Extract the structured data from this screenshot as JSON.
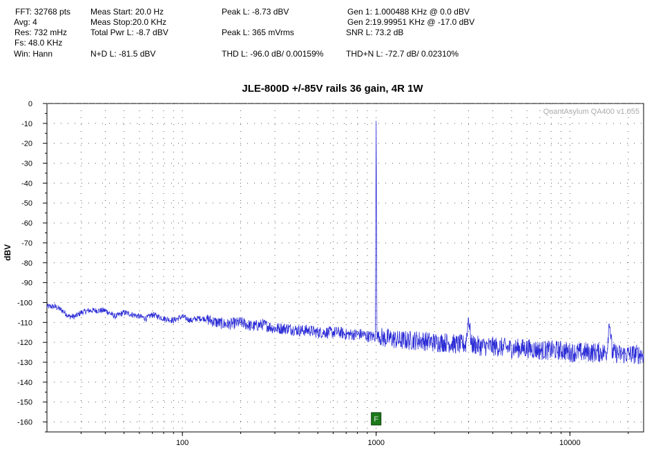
{
  "stats": {
    "fft": "FFT: 32768 pts",
    "avg": "Avg: 4",
    "res": "Res: 732 mHz",
    "fs": "Fs: 48.0 KHz",
    "win": "Win: Hann",
    "meas_start": "Meas Start: 20.0 Hz",
    "meas_stop": "Meas Stop:20.0 KHz",
    "total_pwr": "Total Pwr L: -8.7 dBV",
    "nd": "N+D L: -81.5 dBV",
    "peak_dbv": "Peak L: -8.73 dBV",
    "peak_rms": "Peak L: 365 mVrms",
    "thd": "THD L: -96.0 dB/ 0.00159%",
    "gen1": "Gen 1: 1.000488 KHz @ 0.0  dBV",
    "gen2": "Gen 2:19.99951 KHz @ -17.0  dBV",
    "snr": "SNR L: 73.2 dB",
    "thdn": "THD+N L: -72.7 dB/ 0.02310%"
  },
  "watermark": "QuantAsylum QA400 v1.055",
  "marker_label": "F",
  "colors": {
    "trace": "#2b2bd6",
    "marker": "#1a7a1a",
    "grid": "#555555"
  },
  "chart_data": {
    "type": "line",
    "title": "JLE-800D +/-85V rails 36 gain, 4R 1W",
    "xlabel": "",
    "ylabel": "dBV",
    "xscale": "log",
    "xlim": [
      20,
      24000
    ],
    "ylim": [
      -165,
      0
    ],
    "xticks": [
      100,
      1000,
      10000
    ],
    "yticks": [
      0,
      -10,
      -20,
      -30,
      -40,
      -50,
      -60,
      -70,
      -80,
      -90,
      -100,
      -110,
      -120,
      -130,
      -140,
      -150,
      -160
    ],
    "grid": true,
    "marker_freq": 1000,
    "series": [
      {
        "x": [
          20,
          22,
          24,
          26,
          28,
          30,
          33,
          36,
          40,
          45,
          50,
          55,
          60,
          65,
          70,
          75,
          80,
          90,
          100,
          110,
          120,
          130,
          150,
          170,
          200,
          230,
          260,
          300,
          350,
          400,
          450,
          500,
          550,
          600,
          650,
          700,
          750,
          800,
          850,
          900,
          950,
          990,
          1000,
          1010,
          1050,
          1100,
          1200,
          1300,
          1500,
          1700,
          2000,
          2300,
          2600,
          2900,
          3000,
          3100,
          3500,
          4000,
          5000,
          6000,
          7000,
          8000,
          9000,
          10000,
          12000,
          14000,
          15500,
          16000,
          16500,
          18000,
          20000,
          22000,
          24000
        ],
        "values": [
          -102,
          -102,
          -104,
          -107,
          -107,
          -105,
          -104,
          -104,
          -104,
          -107,
          -105,
          -106,
          -107,
          -108,
          -106,
          -107,
          -108,
          -109,
          -107,
          -109,
          -108,
          -108,
          -110,
          -111,
          -110,
          -112,
          -111,
          -113,
          -113,
          -114,
          -114,
          -115,
          -115,
          -115,
          -115,
          -116,
          -116,
          -116,
          -116,
          -117,
          -117,
          -117,
          -8.7,
          -117,
          -117,
          -118,
          -118,
          -119,
          -119,
          -119,
          -120,
          -120,
          -121,
          -121,
          -107,
          -121,
          -122,
          -122,
          -123,
          -123,
          -124,
          -124,
          -124,
          -125,
          -125,
          -125,
          -125,
          -108,
          -125,
          -126,
          -126,
          -126,
          -126
        ]
      }
    ]
  }
}
